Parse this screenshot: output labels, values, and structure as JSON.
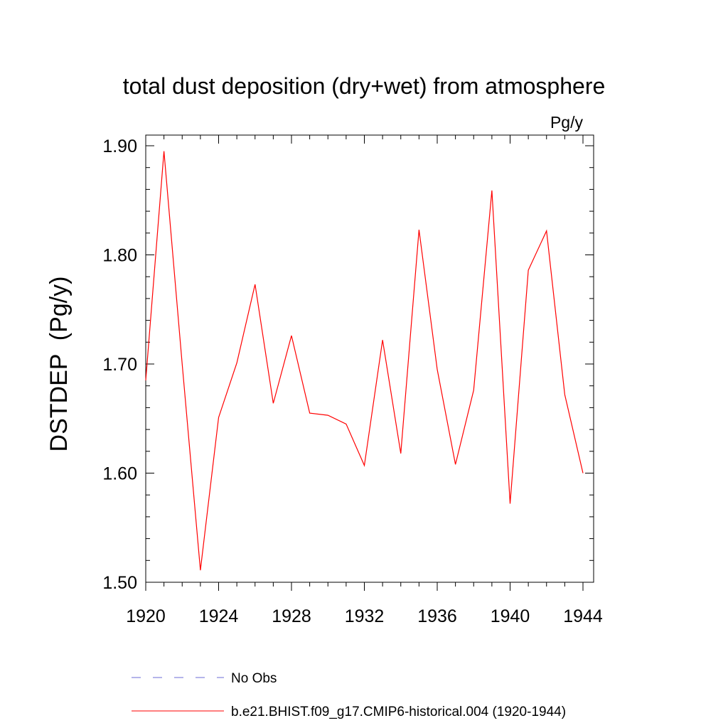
{
  "chart_data": {
    "type": "line",
    "title": "total dust deposition (dry+wet) from atmosphere",
    "units_label": "Pg/y",
    "ylabel": "DSTDEP  (Pg/y)",
    "xlabel": "",
    "xlim": [
      1920,
      1944
    ],
    "ylim": [
      1.5,
      1.9
    ],
    "x_ticks": [
      "1920",
      "1924",
      "1928",
      "1932",
      "1936",
      "1940",
      "1944"
    ],
    "y_ticks": [
      "1.50",
      "1.60",
      "1.70",
      "1.80",
      "1.90"
    ],
    "grid": false,
    "legend_position": "bottom",
    "x": [
      1920,
      1921,
      1922,
      1923,
      1924,
      1925,
      1926,
      1927,
      1928,
      1929,
      1930,
      1931,
      1932,
      1933,
      1934,
      1935,
      1936,
      1937,
      1938,
      1939,
      1940,
      1941,
      1942,
      1943,
      1944
    ],
    "series": [
      {
        "name": "b.e21.BHIST.f09_g17.CMIP6-historical.004 (1920-1944)",
        "color": "#ff0000",
        "style": "solid",
        "values": [
          1.685,
          1.895,
          1.7,
          1.511,
          1.651,
          1.701,
          1.773,
          1.664,
          1.726,
          1.655,
          1.653,
          1.645,
          1.607,
          1.722,
          1.618,
          1.823,
          1.695,
          1.608,
          1.676,
          1.859,
          1.572,
          1.786,
          1.822,
          1.672,
          1.6
        ]
      }
    ],
    "legend": [
      {
        "label": "No Obs",
        "color": "#6b6bd6",
        "style": "dashed"
      },
      {
        "label": "b.e21.BHIST.f09_g17.CMIP6-historical.004 (1920-1944)",
        "color": "#ff0000",
        "style": "solid"
      }
    ]
  }
}
